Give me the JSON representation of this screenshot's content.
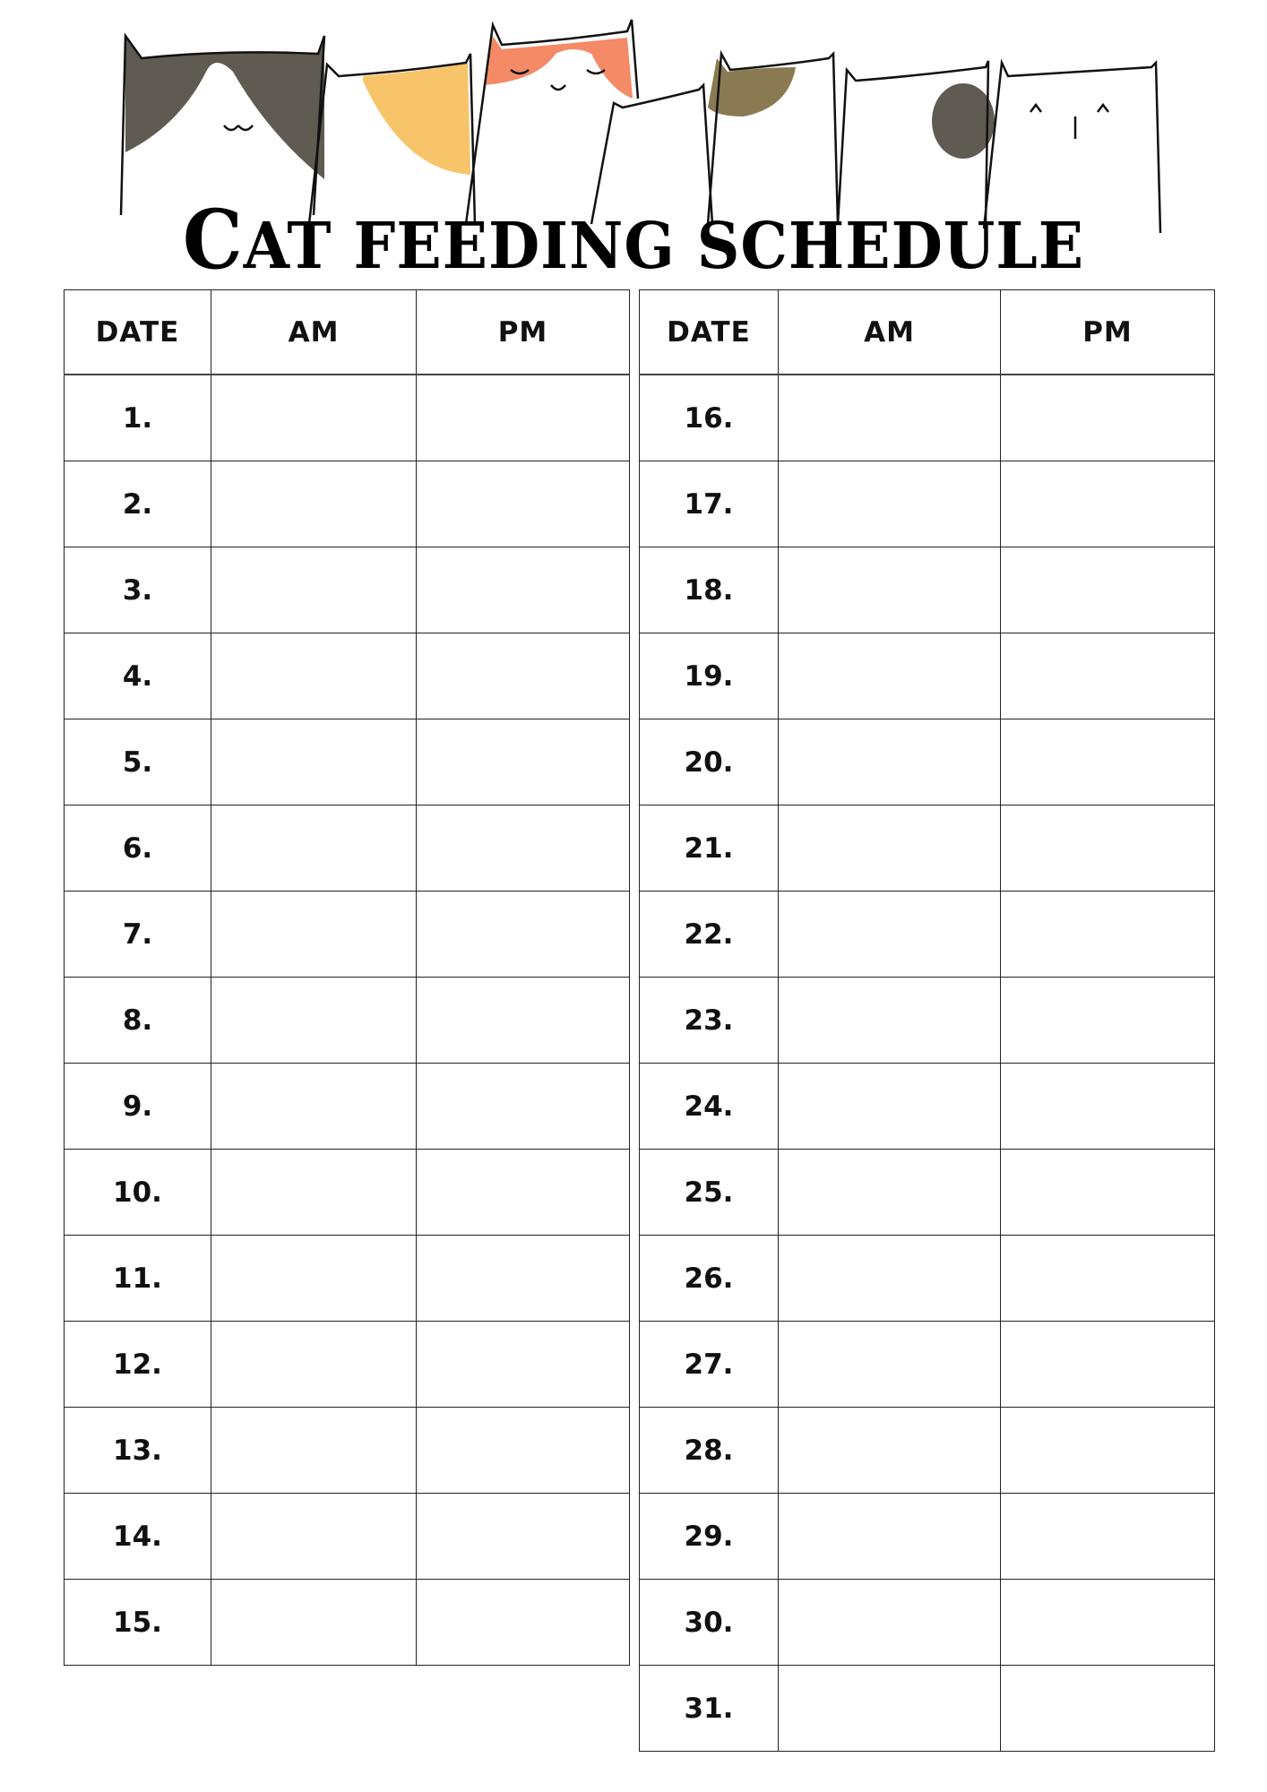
{
  "title": {
    "first_letter": "C",
    "rest": "AT FEEDING SCHEDULE"
  },
  "columns": [
    "DATE",
    "AM",
    "PM"
  ],
  "left_table": {
    "dates": [
      "1.",
      "2.",
      "3.",
      "4.",
      "5.",
      "6.",
      "7.",
      "8.",
      "9.",
      "10.",
      "11.",
      "12.",
      "13.",
      "14.",
      "15."
    ]
  },
  "right_table": {
    "dates": [
      "16.",
      "17.",
      "18.",
      "19.",
      "20.",
      "21.",
      "22.",
      "23.",
      "24.",
      "25.",
      "26.",
      "27.",
      "28.",
      "29.",
      "30.",
      "31."
    ]
  },
  "colors": {
    "gray": "#5f5a52",
    "yellow": "#f8c46a",
    "orange": "#f48a66",
    "olive": "#8a7a52"
  }
}
